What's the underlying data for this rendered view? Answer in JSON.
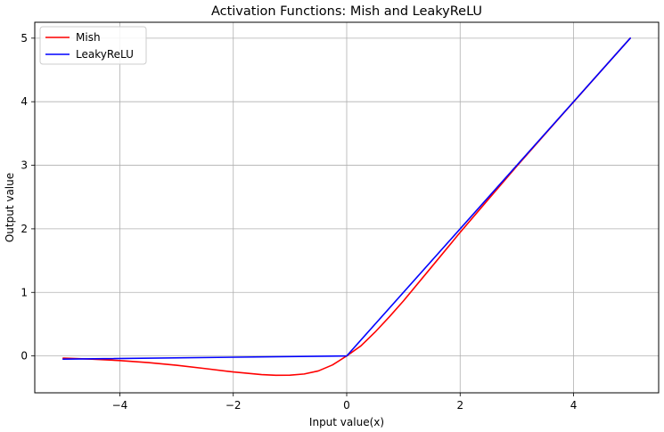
{
  "chart_data": {
    "type": "line",
    "title": "Activation Functions: Mish and LeakyReLU",
    "xlabel": "Input value(x)",
    "ylabel": "Output value",
    "xlim": [
      -5.5,
      5.5
    ],
    "ylim": [
      -0.58,
      5.25
    ],
    "xticks": [
      -4,
      -2,
      0,
      2,
      4
    ],
    "yticks": [
      0,
      1,
      2,
      3,
      4,
      5
    ],
    "xtick_labels": [
      "−4",
      "−2",
      "0",
      "2",
      "4"
    ],
    "ytick_labels": [
      "0",
      "1",
      "2",
      "3",
      "4",
      "5"
    ],
    "grid": true,
    "legend_position": "top-left",
    "series": [
      {
        "name": "Mish",
        "color": "#ff0000",
        "x": [
          -5,
          -4.5,
          -4,
          -3.5,
          -3,
          -2.5,
          -2,
          -1.5,
          -1.25,
          -1,
          -0.75,
          -0.5,
          -0.25,
          0,
          0.25,
          0.5,
          0.75,
          1,
          1.5,
          2,
          2.5,
          3,
          3.5,
          4,
          4.5,
          5
        ],
        "y": [
          -0.034,
          -0.05,
          -0.073,
          -0.105,
          -0.146,
          -0.198,
          -0.252,
          -0.294,
          -0.304,
          -0.303,
          -0.284,
          -0.236,
          -0.141,
          0,
          0.158,
          0.375,
          0.614,
          0.865,
          1.404,
          1.944,
          2.467,
          2.987,
          3.494,
          3.997,
          4.499,
          5.0
        ]
      },
      {
        "name": "LeakyReLU",
        "color": "#0000ff",
        "x": [
          -5,
          0,
          5
        ],
        "y": [
          -0.05,
          0,
          5
        ]
      }
    ]
  }
}
